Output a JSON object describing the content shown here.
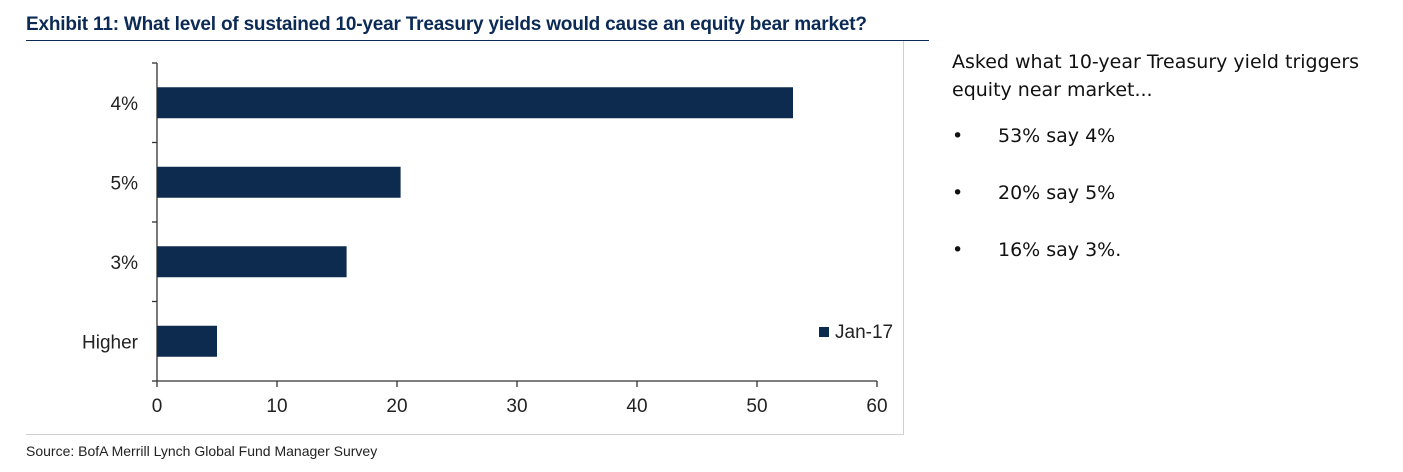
{
  "exhibit": {
    "title": "Exhibit 11: What level of sustained 10-year Treasury yields would cause an equity bear market?",
    "source": "Source: BofA Merrill Lynch Global Fund Manager Survey"
  },
  "chart_data": {
    "type": "bar",
    "orientation": "horizontal",
    "categories": [
      "4%",
      "5%",
      "3%",
      "Higher"
    ],
    "series": [
      {
        "name": "Jan-17",
        "values": [
          53,
          20.3,
          15.8,
          5
        ]
      }
    ],
    "xlim": [
      0,
      60
    ],
    "xticks": [
      0,
      10,
      20,
      30,
      40,
      50,
      60
    ],
    "legend_position": "bottom-right",
    "grid": false,
    "colors": {
      "bar": "#0d2a4f",
      "axis": "#333333"
    }
  },
  "commentary": {
    "intro": "Asked what 10-year Treasury yield triggers equity near market...",
    "bullet_symbol": "•",
    "bullets": [
      "53% say 4%",
      "20% say 5%",
      "16% say 3%."
    ]
  }
}
